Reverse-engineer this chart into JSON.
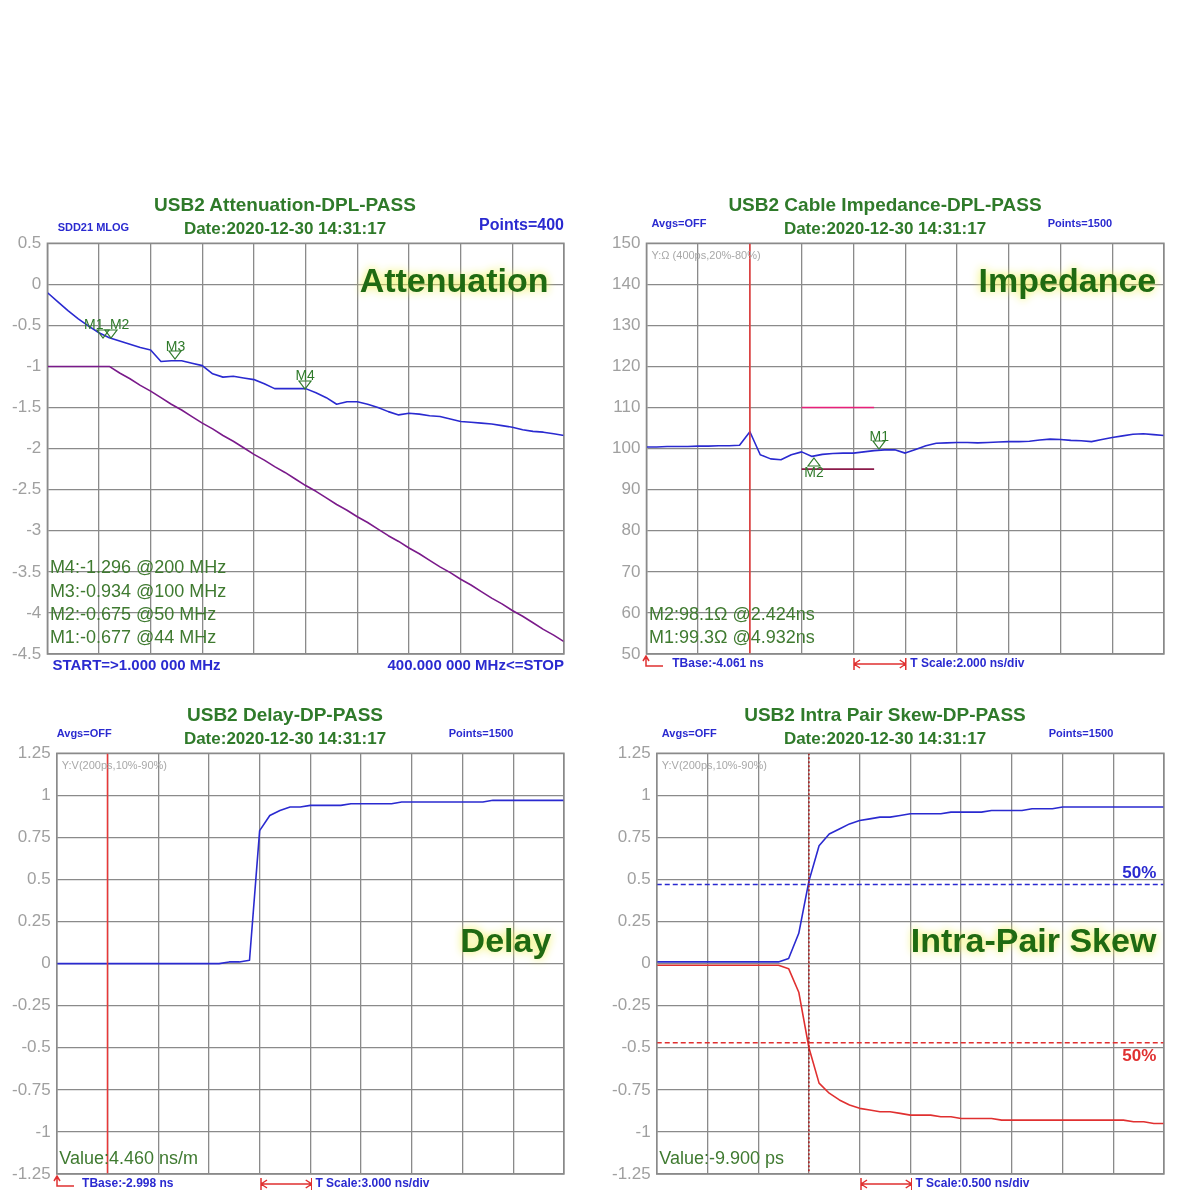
{
  "chart_data": [
    {
      "type": "line",
      "title": "USB2 Attenuation-DPL-PASS",
      "subtitle": "Date:2020-12-30 14:31:17",
      "categories": [
        null,
        null,
        null,
        null,
        null,
        null,
        null,
        null,
        null,
        null,
        null,
        null,
        null,
        null,
        null,
        null,
        null,
        null,
        null,
        null,
        null,
        null,
        null,
        null,
        null,
        null,
        null,
        null,
        null,
        null,
        null,
        null,
        null,
        null,
        null,
        null,
        null,
        null,
        null,
        null,
        null,
        null,
        null,
        null,
        null,
        null,
        null,
        null,
        null,
        null,
        null
      ],
      "ylim": [
        -4.5,
        0.5
      ],
      "yticks": [
        -4.5,
        -4,
        -3.5,
        -3,
        -2.5,
        -2,
        -1.5,
        -1,
        -0.5,
        0,
        0.5
      ],
      "grid": true,
      "tick_labels": "y",
      "series": [
        {
          "color": "#2a2ad0",
          "values": [
            -0.1,
            -0.21,
            -0.32,
            -0.42,
            -0.51,
            -0.59,
            -0.65,
            -0.69,
            -0.73,
            -0.77,
            -0.8,
            -0.94,
            -0.93,
            -0.93,
            -0.96,
            -0.99,
            -1.09,
            -1.13,
            -1.12,
            -1.14,
            -1.16,
            -1.21,
            -1.27,
            -1.27,
            -1.27,
            -1.27,
            -1.32,
            -1.38,
            -1.46,
            -1.43,
            -1.43,
            -1.46,
            -1.5,
            -1.55,
            -1.59,
            -1.57,
            -1.58,
            -1.6,
            -1.61,
            -1.64,
            -1.67,
            -1.68,
            -1.69,
            -1.7,
            -1.72,
            -1.74,
            -1.77,
            -1.79,
            -1.8,
            -1.82,
            -1.84
          ]
        },
        {
          "color": "#7a1a8a",
          "values": [
            -1,
            -1,
            -1,
            -1,
            -1,
            -1,
            -1,
            -1.08,
            -1.15,
            -1.23,
            -1.3,
            -1.38,
            -1.46,
            -1.53,
            -1.61,
            -1.69,
            -1.76,
            -1.84,
            -1.91,
            -1.99,
            -2.07,
            -2.14,
            -2.22,
            -2.29,
            -2.37,
            -2.45,
            -2.52,
            -2.6,
            -2.68,
            -2.75,
            -2.83,
            -2.9,
            -2.98,
            -3.06,
            -3.13,
            -3.21,
            -3.28,
            -3.36,
            -3.44,
            -3.51,
            -3.59,
            -3.66,
            -3.74,
            -3.82,
            -3.89,
            -3.97,
            -4.04,
            -4.12,
            -4.2,
            -4.27,
            -4.35
          ]
        }
      ],
      "annotations": [
        "SDD21 MLOG",
        "Points=400",
        "Attenuation",
        "M4:-1.296 @200 MHz",
        "M3:-0.934 @100 MHz",
        "M2:-0.675 @50 MHz",
        "M1:-0.677 @44 MHz",
        "START=>1.000 000 MHz",
        "400.000 000 MHz<=STOP",
        "M1",
        "M2",
        "M3",
        "M4"
      ]
    },
    {
      "type": "line",
      "title": "USB2 Cable Impedance-DPL-PASS",
      "subtitle": "Date:2020-12-30 14:31:17",
      "categories": [
        null,
        null,
        null,
        null,
        null,
        null,
        null,
        null,
        null,
        null,
        null,
        null,
        null,
        null,
        null,
        null,
        null,
        null,
        null,
        null,
        null,
        null,
        null,
        null,
        null,
        null,
        null,
        null,
        null,
        null,
        null,
        null,
        null,
        null,
        null,
        null,
        null,
        null,
        null,
        null,
        null,
        null,
        null,
        null,
        null,
        null,
        null,
        null,
        null,
        null,
        null
      ],
      "ylim": [
        50,
        150
      ],
      "yticks": [
        50,
        60,
        70,
        80,
        90,
        100,
        110,
        120,
        130,
        140,
        150
      ],
      "grid": true,
      "tick_labels": "y",
      "series": [
        {
          "color": "#2a2ad0",
          "values": [
            100.4,
            100.4,
            100.5,
            100.5,
            100.5,
            100.6,
            100.6,
            100.7,
            100.7,
            100.8,
            104.1,
            98.5,
            97.5,
            97.3,
            98.5,
            99.2,
            98.1,
            98.6,
            98.8,
            98.9,
            98.9,
            99.2,
            99.5,
            99.7,
            99.7,
            98.9,
            99.8,
            100.7,
            101.3,
            101.4,
            101.5,
            101.5,
            101.4,
            101.5,
            101.6,
            101.7,
            101.7,
            101.8,
            102.1,
            102.3,
            102.2,
            102,
            101.9,
            101.7,
            102.2,
            102.7,
            103.1,
            103.5,
            103.6,
            103.4,
            103.2
          ]
        },
        {
          "color": "#e8207a",
          "values": [
            null,
            null,
            null,
            null,
            null,
            null,
            null,
            null,
            null,
            null,
            null,
            null,
            null,
            null,
            null,
            110,
            110,
            110,
            110,
            110,
            110,
            110,
            110,
            null,
            null,
            null,
            null,
            null,
            null,
            null,
            null,
            null,
            null,
            null,
            null,
            null,
            null,
            null,
            null,
            null,
            null,
            null,
            null,
            null,
            null,
            null,
            null,
            null,
            null,
            null,
            null
          ]
        },
        {
          "color": "#8b1a4a",
          "values": [
            null,
            null,
            null,
            null,
            null,
            null,
            null,
            null,
            null,
            null,
            null,
            null,
            null,
            null,
            null,
            95,
            95,
            95,
            95,
            95,
            95,
            95,
            95,
            null,
            null,
            null,
            null,
            null,
            null,
            null,
            null,
            null,
            null,
            null,
            null,
            null,
            null,
            null,
            null,
            null,
            null,
            null,
            null,
            null,
            null,
            null,
            null,
            null,
            null,
            null,
            null
          ]
        }
      ],
      "annotations": [
        "Avgs=OFF",
        "Points=1500",
        "Y:Ω (400ps,20%-80%)",
        "Impedance",
        "M2:98.1Ω @2.424ns",
        "M1:99.3Ω @4.932ns",
        "TBase:-4.061 ns",
        "T Scale:2.000 ns/div",
        "M1",
        "M2"
      ]
    },
    {
      "type": "line",
      "title": "USB2 Delay-DP-PASS",
      "subtitle": "Date:2020-12-30 14:31:17",
      "categories": [
        null,
        null,
        null,
        null,
        null,
        null,
        null,
        null,
        null,
        null,
        null,
        null,
        null,
        null,
        null,
        null,
        null,
        null,
        null,
        null,
        null,
        null,
        null,
        null,
        null,
        null,
        null,
        null,
        null,
        null,
        null,
        null,
        null,
        null,
        null,
        null,
        null,
        null,
        null,
        null,
        null,
        null,
        null,
        null,
        null,
        null,
        null,
        null,
        null,
        null,
        null
      ],
      "ylim": [
        -1.25,
        1.25
      ],
      "yticks": [
        -1.25,
        -1,
        -0.75,
        -0.5,
        -0.25,
        0,
        0.25,
        0.5,
        0.75,
        1,
        1.25
      ],
      "grid": true,
      "tick_labels": "y",
      "series": [
        {
          "color": "#2a2ad0",
          "values": [
            0,
            0,
            0,
            0,
            0,
            0,
            0,
            0,
            0,
            0,
            0,
            0,
            0,
            0,
            0,
            0,
            0,
            0.01,
            0.01,
            0.02,
            0.79,
            0.88,
            0.91,
            0.93,
            0.93,
            0.94,
            0.94,
            0.94,
            0.94,
            0.95,
            0.95,
            0.95,
            0.95,
            0.95,
            0.96,
            0.96,
            0.96,
            0.96,
            0.96,
            0.96,
            0.96,
            0.96,
            0.96,
            0.97,
            0.97,
            0.97,
            0.97,
            0.97,
            0.97,
            0.97,
            0.97
          ]
        }
      ],
      "annotations": [
        "Avgs=OFF",
        "Points=1500",
        "Y:V(200ps,10%-90%)",
        "Delay",
        "Value:4.460 ns/m",
        "TBase:-2.998 ns",
        "T Scale:3.000 ns/div"
      ]
    },
    {
      "type": "line",
      "title": "USB2 Intra Pair Skew-DP-PASS",
      "subtitle": "Date:2020-12-30 14:31:17",
      "categories": [
        null,
        null,
        null,
        null,
        null,
        null,
        null,
        null,
        null,
        null,
        null,
        null,
        null,
        null,
        null,
        null,
        null,
        null,
        null,
        null,
        null,
        null,
        null,
        null,
        null,
        null,
        null,
        null,
        null,
        null,
        null,
        null,
        null,
        null,
        null,
        null,
        null,
        null,
        null,
        null,
        null,
        null,
        null,
        null,
        null,
        null,
        null,
        null,
        null,
        null,
        null
      ],
      "ylim": [
        -1.25,
        1.25
      ],
      "yticks": [
        -1.25,
        -1,
        -0.75,
        -0.5,
        -0.25,
        0,
        0.25,
        0.5,
        0.75,
        1,
        1.25
      ],
      "grid": true,
      "tick_labels": "y",
      "series": [
        {
          "color": "#2a2ad0",
          "values": [
            0.01,
            0.01,
            0.01,
            0.01,
            0.01,
            0.01,
            0.01,
            0.01,
            0.01,
            0.01,
            0.01,
            0.01,
            0.01,
            0.03,
            0.18,
            0.49,
            0.7,
            0.77,
            0.8,
            0.83,
            0.85,
            0.86,
            0.87,
            0.87,
            0.88,
            0.89,
            0.89,
            0.89,
            0.89,
            0.9,
            0.9,
            0.9,
            0.9,
            0.91,
            0.91,
            0.91,
            0.91,
            0.92,
            0.92,
            0.92,
            0.93,
            0.93,
            0.93,
            0.93,
            0.93,
            0.93,
            0.93,
            0.93,
            0.93,
            0.93,
            0.93
          ]
        },
        {
          "color": "#e03030",
          "values": [
            -0.01,
            -0.01,
            -0.01,
            -0.01,
            -0.01,
            -0.01,
            -0.01,
            -0.01,
            -0.01,
            -0.01,
            -0.01,
            -0.01,
            -0.01,
            -0.03,
            -0.17,
            -0.5,
            -0.71,
            -0.77,
            -0.81,
            -0.84,
            -0.86,
            -0.87,
            -0.88,
            -0.88,
            -0.89,
            -0.9,
            -0.9,
            -0.9,
            -0.91,
            -0.91,
            -0.92,
            -0.92,
            -0.92,
            -0.92,
            -0.93,
            -0.93,
            -0.93,
            -0.93,
            -0.93,
            -0.93,
            -0.93,
            -0.93,
            -0.93,
            -0.93,
            -0.93,
            -0.93,
            -0.93,
            -0.94,
            -0.94,
            -0.95,
            -0.95
          ]
        }
      ],
      "ref_lines": [
        {
          "axis": "y",
          "value": 0.47,
          "color": "#2a2ad0",
          "line_style": "dashed"
        },
        {
          "axis": "y",
          "value": -0.47,
          "color": "#e03030",
          "line_style": "dashed"
        }
      ],
      "annotations": [
        "Avgs=OFF",
        "Points=1500",
        "Y:V(200ps,10%-90%)",
        "Intra-Pair Skew",
        "Value:-9.900 ps",
        "T Scale:0.500 ns/div",
        "50%",
        "50%"
      ]
    }
  ]
}
